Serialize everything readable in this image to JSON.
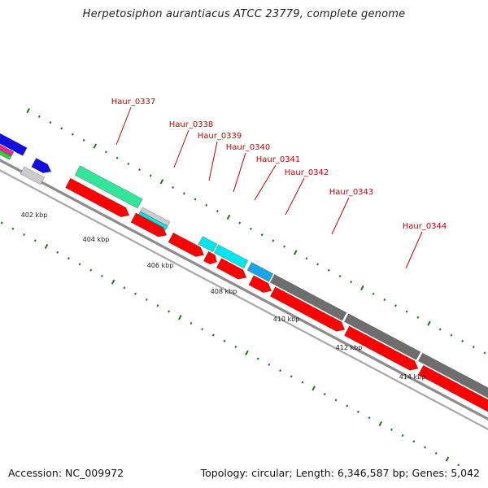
{
  "title": "Herpetosiphon aurantiacus ATCC 23779, complete genome",
  "accession": "Accession: NC_009972",
  "summary": "Topology: circular; Length: 6,346,587 bp; Genes: 5,042",
  "colors": {
    "backbone": "#8c8c8c",
    "tick": "#1a7a1a",
    "label": "#c00000",
    "cds": "#ff0000",
    "gene_green": "#33e59a",
    "gene_grey": "#cccccc",
    "gene_cyan": "#00e5ee",
    "gene_sky": "#1aa6e6",
    "gene_dark": "#6e6e6e",
    "gene_blue": "#1010e0"
  },
  "scale_labels": [
    "402 kbp",
    "404 kbp",
    "406 kbp",
    "408 kbp",
    "410 kbp",
    "412 kbp",
    "414 kbp"
  ],
  "gene_labels": [
    "Haur_0337",
    "Haur_0338",
    "Haur_0339",
    "Haur_0340",
    "Haur_0341",
    "Haur_0342",
    "Haur_0343",
    "Haur_0344"
  ]
}
